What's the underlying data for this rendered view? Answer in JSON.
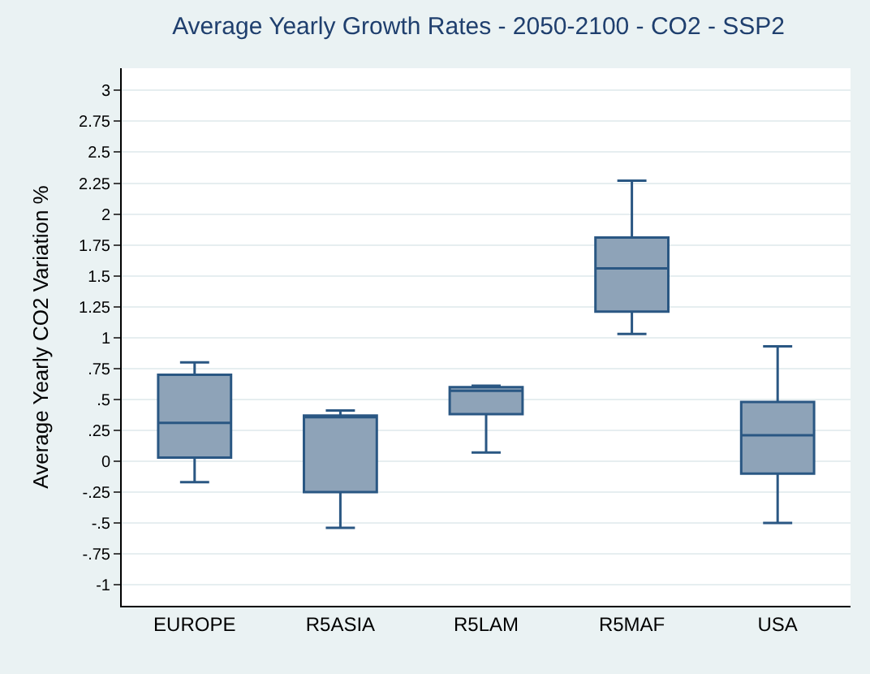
{
  "chart_data": {
    "type": "box",
    "title": "Average Yearly Growth Rates - 2050-2100 - CO2 - SSP2",
    "ylabel": "Average Yearly CO2 Variation %",
    "categories": [
      "EUROPE",
      "R5ASIA",
      "R5LAM",
      "R5MAF",
      "USA"
    ],
    "boxes": [
      {
        "low": -0.17,
        "q1": 0.03,
        "median": 0.31,
        "q3": 0.7,
        "high": 0.8
      },
      {
        "low": -0.54,
        "q1": -0.25,
        "median": 0.36,
        "q3": 0.37,
        "high": 0.41
      },
      {
        "low": 0.07,
        "q1": 0.38,
        "median": 0.57,
        "q3": 0.6,
        "high": 0.61
      },
      {
        "low": 1.03,
        "q1": 1.21,
        "median": 1.56,
        "q3": 1.81,
        "high": 2.27
      },
      {
        "low": -0.5,
        "q1": -0.1,
        "median": 0.21,
        "q3": 0.48,
        "high": 0.93
      }
    ],
    "color": "#8ea3b8",
    "ylim": [
      -1.17,
      3.18
    ],
    "yticks": [
      {
        "value": -1,
        "label": "-1"
      },
      {
        "value": -0.75,
        "label": "-.75"
      },
      {
        "value": -0.5,
        "label": "-.5"
      },
      {
        "value": -0.25,
        "label": "-.25"
      },
      0,
      {
        "value": 0.25,
        "label": ".25"
      },
      {
        "value": 0.5,
        "label": ".5"
      },
      {
        "value": 0.75,
        "label": ".75"
      },
      1,
      1.25,
      1.5,
      1.75,
      2,
      2.25,
      2.5,
      2.75,
      3
    ],
    "grid": "y",
    "legend": false
  }
}
